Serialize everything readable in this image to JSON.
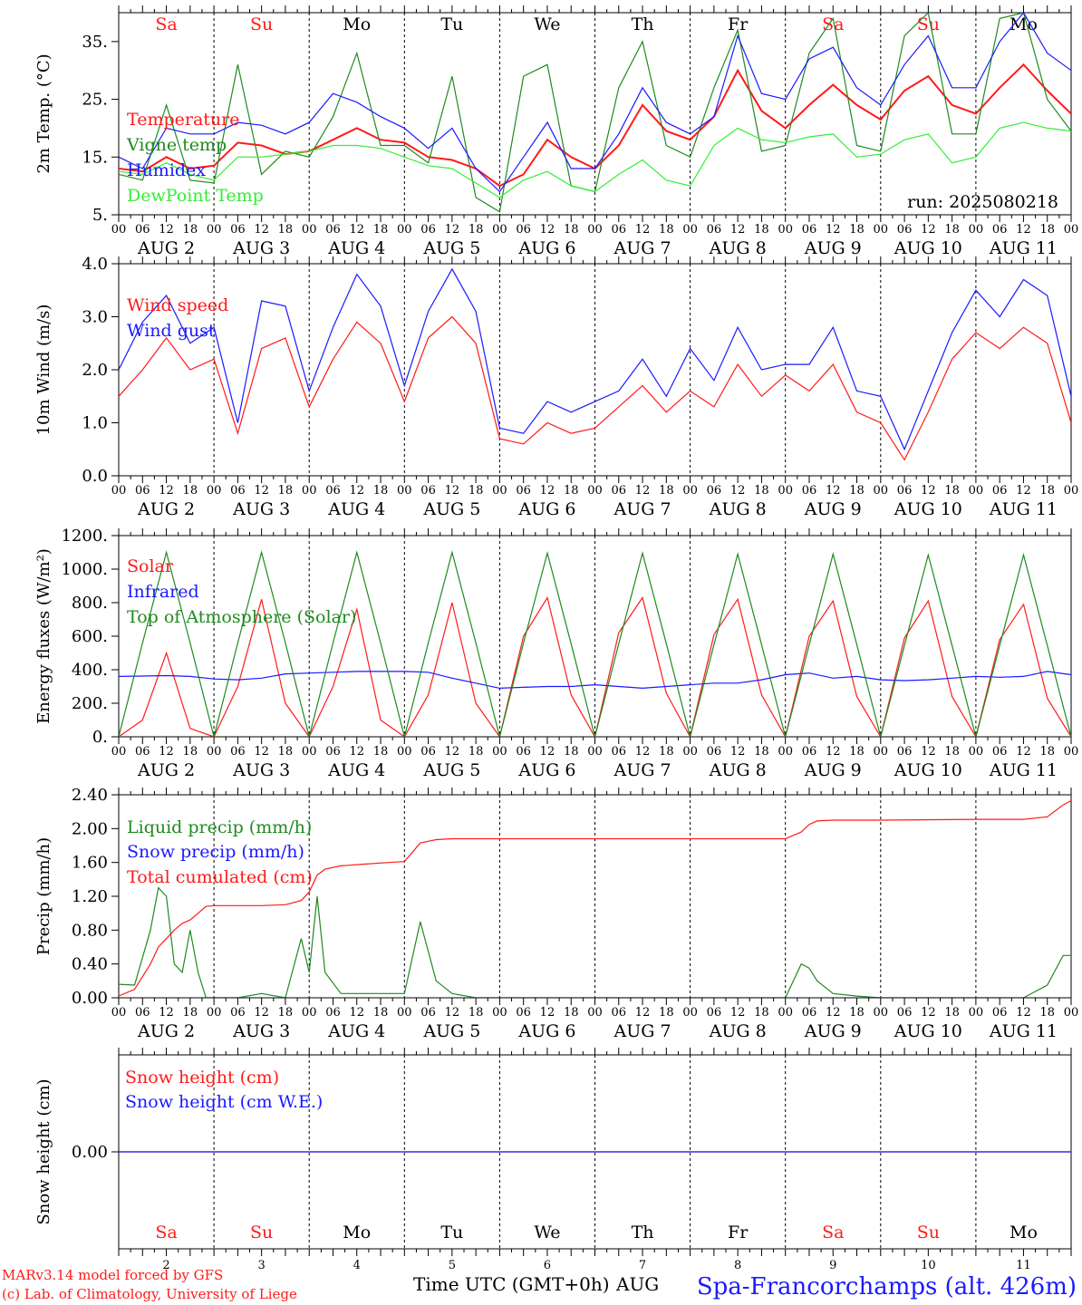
{
  "station": "Spa-Francorchamps (alt. 426m)",
  "run_label": "run: 2025080218",
  "credit_lines": [
    "MARv3.14 model forced by GFS",
    "(c) Lab. of Climatology, University of Liege"
  ],
  "x_title": "Time UTC (GMT+0h)",
  "x_month_tag": "AUG",
  "hour_ticks": [
    "00",
    "06",
    "12",
    "18"
  ],
  "days": [
    {
      "day": "2",
      "wd": "Sa",
      "weekend": true
    },
    {
      "day": "3",
      "wd": "Su",
      "weekend": true
    },
    {
      "day": "4",
      "wd": "Mo",
      "weekend": false
    },
    {
      "day": "5",
      "wd": "Tu",
      "weekend": false
    },
    {
      "day": "6",
      "wd": "We",
      "weekend": false
    },
    {
      "day": "7",
      "wd": "Th",
      "weekend": false
    },
    {
      "day": "8",
      "wd": "Fr",
      "weekend": false
    },
    {
      "day": "9",
      "wd": "Sa",
      "weekend": true
    },
    {
      "day": "10",
      "wd": "Su",
      "weekend": true
    },
    {
      "day": "11",
      "wd": "Mo",
      "weekend": false
    }
  ],
  "colors": {
    "red": "#ff1a1a",
    "green": "#1f8a1f",
    "blue": "#1a1aff",
    "lime": "#33ee33",
    "black": "#000000"
  },
  "chart_data": [
    {
      "id": "temp",
      "type": "line",
      "ylabel": "2m Temp. (°C)",
      "ylim": [
        5,
        40
      ],
      "yticks": [
        5,
        15,
        25,
        35
      ],
      "ytick_labels": [
        "5.",
        "15.",
        "25.",
        "35."
      ],
      "show_weekdays": true,
      "x_hours": [
        0,
        6,
        12,
        18,
        24,
        30,
        36,
        42,
        48,
        54,
        60,
        66,
        72,
        78,
        84,
        90,
        96,
        102,
        108,
        114,
        120,
        126,
        132,
        138,
        144,
        150,
        156,
        162,
        168,
        174,
        180,
        186,
        192,
        198,
        204,
        210,
        216,
        222,
        228,
        234,
        240
      ],
      "series": [
        {
          "name": "Temperature",
          "color": "red",
          "values": [
            13,
            12.5,
            15,
            13,
            13.5,
            17.5,
            17,
            15.5,
            16,
            18,
            20,
            18,
            17.5,
            15,
            14.5,
            13,
            10,
            12,
            18,
            15,
            13,
            17,
            24,
            19.5,
            18,
            22,
            30,
            23,
            20,
            24,
            27.5,
            24,
            21.5,
            26.5,
            29,
            24,
            22.5,
            27,
            31,
            26.5,
            22.5
          ]
        },
        {
          "name": "Vigne temp",
          "color": "green",
          "values": [
            12,
            11,
            24,
            11,
            10.5,
            31,
            12,
            16,
            15,
            22,
            33,
            17,
            17,
            14,
            29,
            8,
            5.5,
            29,
            31,
            10,
            9,
            27,
            35,
            17,
            15,
            27,
            37,
            16,
            17,
            33,
            39,
            17,
            16,
            36,
            40,
            19,
            19,
            39,
            40,
            25,
            19.5
          ]
        },
        {
          "name": "Humidex",
          "color": "blue",
          "values": [
            15,
            13,
            20,
            19,
            19,
            21,
            20.5,
            19,
            21,
            26,
            24.5,
            22,
            20,
            16.5,
            20,
            13,
            9,
            15,
            21,
            13,
            13,
            19,
            27,
            21,
            19,
            22,
            36,
            26,
            25,
            32,
            34,
            27,
            24,
            31,
            36,
            27,
            27,
            35,
            40,
            33,
            30
          ]
        },
        {
          "name": "DewPoint Temp",
          "color": "lime",
          "values": [
            12.5,
            12,
            14,
            12,
            11,
            15,
            15,
            15.5,
            16,
            17,
            17,
            16.5,
            15,
            13.5,
            13,
            10.5,
            8,
            11,
            12.5,
            10,
            9,
            12,
            14.5,
            11,
            10,
            17,
            20,
            18,
            17.5,
            18.5,
            19,
            15,
            15.5,
            18,
            19,
            14,
            15,
            20,
            21,
            20,
            19.5
          ]
        }
      ],
      "legend_order": [
        "Temperature",
        "Vigne temp",
        "Humidex",
        "DewPoint Temp"
      ]
    },
    {
      "id": "wind",
      "type": "line",
      "ylabel": "10m Wind (m/s)",
      "ylim": [
        0,
        4
      ],
      "yticks": [
        0,
        1,
        2,
        3,
        4
      ],
      "ytick_labels": [
        "0.0",
        "1.0",
        "2.0",
        "3.0",
        "4.0"
      ],
      "x_hours": [
        0,
        6,
        12,
        18,
        24,
        30,
        36,
        42,
        48,
        54,
        60,
        66,
        72,
        78,
        84,
        90,
        96,
        102,
        108,
        114,
        120,
        126,
        132,
        138,
        144,
        150,
        156,
        162,
        168,
        174,
        180,
        186,
        192,
        198,
        204,
        210,
        216,
        222,
        228,
        234,
        240
      ],
      "series": [
        {
          "name": "Wind speed",
          "color": "red",
          "values": [
            1.5,
            2,
            2.6,
            2,
            2.2,
            0.8,
            2.4,
            2.6,
            1.3,
            2.2,
            2.9,
            2.5,
            1.4,
            2.6,
            3,
            2.5,
            0.7,
            0.6,
            1,
            0.8,
            0.9,
            1.3,
            1.7,
            1.2,
            1.6,
            1.3,
            2.1,
            1.5,
            1.9,
            1.6,
            2.1,
            1.2,
            1,
            0.3,
            1.2,
            2.2,
            2.7,
            2.4,
            2.8,
            2.5,
            1
          ]
        },
        {
          "name": "Wind gust",
          "color": "blue",
          "values": [
            2,
            2.9,
            3.4,
            2.5,
            2.8,
            1,
            3.3,
            3.2,
            1.6,
            2.8,
            3.8,
            3.2,
            1.7,
            3.1,
            3.9,
            3.1,
            0.9,
            0.8,
            1.4,
            1.2,
            1.4,
            1.6,
            2.2,
            1.5,
            2.4,
            1.8,
            2.8,
            2,
            2.1,
            2.1,
            2.8,
            1.6,
            1.5,
            0.5,
            1.6,
            2.7,
            3.5,
            3,
            3.7,
            3.4,
            1.5
          ]
        }
      ],
      "legend_order": [
        "Wind speed",
        "Wind gust"
      ]
    },
    {
      "id": "energy",
      "type": "line",
      "ylabel": "Energy fluxes (W/m²)",
      "ylim": [
        0,
        1200
      ],
      "yticks": [
        0,
        200,
        400,
        600,
        800,
        1000,
        1200
      ],
      "ytick_labels": [
        "0.",
        "200.",
        "400.",
        "600.",
        "800.",
        "1000.",
        "1200."
      ],
      "x_hours": [
        0,
        6,
        12,
        18,
        24,
        30,
        36,
        42,
        48,
        54,
        60,
        66,
        72,
        78,
        84,
        90,
        96,
        102,
        108,
        114,
        120,
        126,
        132,
        138,
        144,
        150,
        156,
        162,
        168,
        174,
        180,
        186,
        192,
        198,
        204,
        210,
        216,
        222,
        228,
        234,
        240
      ],
      "series": [
        {
          "name": "Solar",
          "color": "red",
          "values": [
            0,
            100,
            500,
            50,
            0,
            300,
            820,
            200,
            0,
            300,
            760,
            100,
            0,
            250,
            800,
            200,
            0,
            600,
            830,
            250,
            0,
            620,
            830,
            260,
            0,
            610,
            820,
            250,
            0,
            600,
            810,
            240,
            0,
            590,
            810,
            240,
            0,
            580,
            790,
            230,
            0
          ]
        },
        {
          "name": "Infrared",
          "color": "blue",
          "values": [
            360,
            362,
            365,
            360,
            345,
            340,
            350,
            375,
            380,
            385,
            390,
            390,
            390,
            385,
            350,
            320,
            290,
            295,
            300,
            300,
            310,
            300,
            290,
            300,
            310,
            320,
            320,
            340,
            370,
            380,
            350,
            360,
            340,
            335,
            340,
            350,
            360,
            355,
            360,
            390,
            370
          ]
        },
        {
          "name": "Top of Atmosphere (Solar)",
          "color": "green",
          "values": [
            0,
            560,
            1100,
            560,
            0,
            560,
            1100,
            560,
            0,
            560,
            1100,
            560,
            0,
            560,
            1100,
            560,
            0,
            560,
            1095,
            555,
            0,
            555,
            1095,
            555,
            0,
            550,
            1090,
            550,
            0,
            550,
            1090,
            550,
            0,
            545,
            1085,
            545,
            0,
            545,
            1085,
            545,
            0
          ]
        }
      ],
      "legend_order": [
        "Solar",
        "Infrared",
        "Top of Atmosphere (Solar)"
      ]
    },
    {
      "id": "precip",
      "type": "line",
      "ylabel": "Precip (mm/h)",
      "ylim": [
        0,
        2.4
      ],
      "yticks": [
        0,
        0.4,
        0.8,
        1.2,
        1.6,
        2,
        2.4
      ],
      "ytick_labels": [
        "0.00",
        "0.40",
        "0.80",
        "1.20",
        "1.60",
        "2.00",
        "2.40"
      ],
      "x_hours": [
        0,
        4,
        8,
        10,
        12,
        14,
        16,
        18,
        20,
        22,
        24,
        30,
        36,
        42,
        46,
        48,
        50,
        52,
        56,
        62,
        68,
        72,
        76,
        80,
        84,
        90,
        96,
        120,
        144,
        168,
        172,
        174,
        176,
        180,
        186,
        192,
        216,
        228,
        234,
        238,
        240
      ],
      "series": [
        {
          "name": "Liquid precip (mm/h)",
          "color": "green",
          "values": [
            0.16,
            0.15,
            0.8,
            1.3,
            1.2,
            0.4,
            0.3,
            0.8,
            0.3,
            0,
            0,
            0,
            0.05,
            0,
            0.7,
            0.3,
            1.2,
            0.3,
            0.05,
            0.05,
            0.05,
            0.05,
            0.9,
            0.2,
            0.05,
            0,
            0,
            0,
            0,
            0,
            0.4,
            0.35,
            0.2,
            0.05,
            0.02,
            0,
            0,
            0,
            0.15,
            0.5,
            0.5
          ]
        },
        {
          "name": "Snow precip (mm/h)",
          "color": "blue",
          "values": [
            0,
            0,
            0,
            0,
            0,
            0,
            0,
            0,
            0,
            0,
            0,
            0,
            0,
            0,
            0,
            0,
            0,
            0,
            0,
            0,
            0,
            0,
            0,
            0,
            0,
            0,
            0,
            0,
            0,
            0,
            0,
            0,
            0,
            0,
            0,
            0,
            0,
            0,
            0,
            0,
            0
          ]
        },
        {
          "name": "Total cumulated (cm)",
          "color": "red",
          "values": [
            0.02,
            0.1,
            0.4,
            0.6,
            0.7,
            0.8,
            0.88,
            0.92,
            1.0,
            1.08,
            1.09,
            1.09,
            1.09,
            1.1,
            1.15,
            1.25,
            1.45,
            1.52,
            1.56,
            1.58,
            1.6,
            1.61,
            1.83,
            1.87,
            1.88,
            1.88,
            1.88,
            1.88,
            1.88,
            1.88,
            1.96,
            2.05,
            2.09,
            2.1,
            2.1,
            2.1,
            2.11,
            2.11,
            2.14,
            2.28,
            2.33
          ]
        }
      ],
      "legend_order": [
        "Liquid precip (mm/h)",
        "Snow precip (mm/h)",
        "Total cumulated (cm)"
      ]
    },
    {
      "id": "snow",
      "type": "line",
      "ylabel": "Snow height (cm)",
      "ylim": [
        -1,
        1
      ],
      "yticks": [
        0
      ],
      "ytick_labels": [
        "0.00"
      ],
      "x_hours": [
        0,
        240
      ],
      "series": [
        {
          "name": "Snow height (cm)",
          "color": "red",
          "values": [
            0,
            0
          ]
        },
        {
          "name": "Snow height (cm W.E.)",
          "color": "blue",
          "values": [
            0,
            0
          ]
        }
      ],
      "legend_order": [
        "Snow height (cm)",
        "Snow height (cm W.E.)"
      ]
    }
  ]
}
